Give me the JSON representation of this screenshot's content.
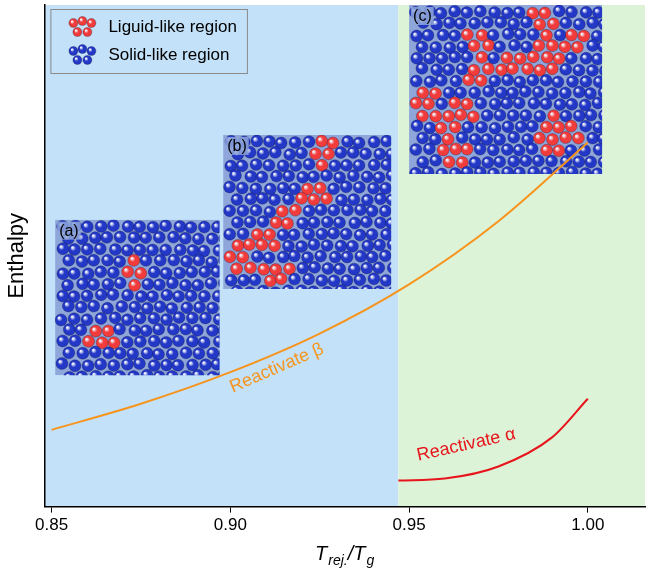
{
  "chart_data": {
    "type": "line",
    "xlabel": [
      {
        "text": "T",
        "sub": "rej."
      },
      {
        "text": "/"
      },
      {
        "text": "T",
        "sub": "g"
      }
    ],
    "ylabel": "Enthalpy",
    "xlim": [
      0.848,
      1.016
    ],
    "xticks": [
      0.85,
      {
        "value": 0.9,
        "label": "0.90"
      },
      0.95,
      {
        "value": 1,
        "label": "1.00"
      }
    ],
    "ylim": [
      0,
      10
    ],
    "yticks": [],
    "tick_labels": "x",
    "grid": false,
    "legend": "upper left",
    "legend_items": [
      {
        "name": "Liguid-like region",
        "color": "#f23c3c"
      },
      {
        "name": "Solid-like region",
        "color": "#2438c8"
      }
    ],
    "regions": [
      {
        "x": [
          0.848,
          0.947
        ],
        "color": "#c3e1f8"
      },
      {
        "x": [
          0.947,
          1.016
        ],
        "color": "#dcf3d8"
      }
    ],
    "insets": [
      {
        "label": "(a)",
        "x": [
          0.851,
          0.897
        ],
        "y": [
          2.62,
          5.72
        ],
        "liquid_clusters": 2
      },
      {
        "label": "(b)",
        "x": [
          0.898,
          0.945
        ],
        "y": [
          4.34,
          7.41
        ],
        "liquid_clusters": 6
      },
      {
        "label": "(c)",
        "x": [
          0.95,
          1.004
        ],
        "y": [
          6.63,
          10
        ],
        "liquid_clusters": 13
      }
    ],
    "series": [
      {
        "name": "Reactivate β",
        "color": "#f7941d",
        "x": [
          0.85,
          0.875,
          0.9,
          0.925,
          0.95,
          0.975,
          1.0
        ],
        "values": [
          1.53,
          2.05,
          2.68,
          3.45,
          4.43,
          5.69,
          7.26
        ],
        "label": {
          "x": 0.913,
          "y": 2.76
        }
      },
      {
        "name": "Reactivate α",
        "color": "#e8141b",
        "x": [
          0.947,
          0.96,
          0.975,
          0.99,
          1.0
        ],
        "values": [
          0.52,
          0.56,
          0.8,
          1.38,
          2.15
        ],
        "label": {
          "x": 0.966,
          "y": 1.23
        }
      }
    ]
  }
}
